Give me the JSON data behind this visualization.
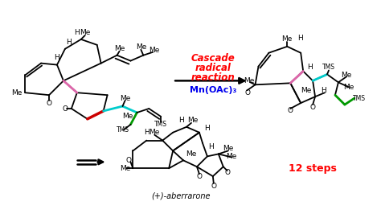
{
  "background_color": "#ffffff",
  "cascade_text": [
    "Cascade",
    "radical",
    "reaction"
  ],
  "cascade_color": "#ff0000",
  "reagent_text": "Mn(OAc)₃",
  "reagent_color": "#0000ee",
  "steps_text": "12 steps",
  "steps_color": "#ff0000",
  "aberrarone_label": "(+)-aberrarone",
  "arrow_color": "#000000",
  "bond_color": "#000000",
  "red_bond_color": "#cc0000",
  "cyan_bond_color": "#00cccc",
  "pink_bond_color": "#dd66aa",
  "green_bond_color": "#009900",
  "fig_width": 4.74,
  "fig_height": 2.71
}
